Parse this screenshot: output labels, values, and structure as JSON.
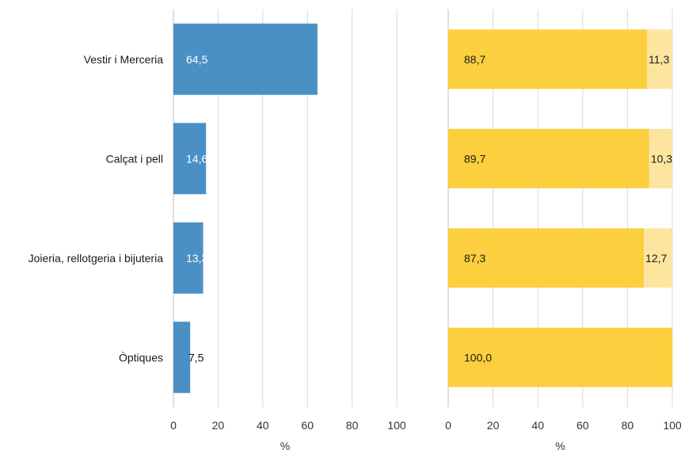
{
  "chart_data": [
    {
      "type": "bar",
      "orientation": "horizontal",
      "categories": [
        "Vestir i Merceria",
        "Calçat i pell",
        "Joieria, rellotgeria i bijuteria",
        "Òptiques"
      ],
      "values": [
        64.5,
        14.6,
        13.3,
        7.5
      ],
      "value_labels": [
        "64,5",
        "14,6",
        "13,3",
        "7,5"
      ],
      "xlabel": "%",
      "xlim": [
        0,
        100
      ],
      "xticks": [
        "0",
        "20",
        "40",
        "60",
        "80",
        "100"
      ],
      "grid": "vertical",
      "color": "#4a90c4",
      "label_color": "#ffffff"
    },
    {
      "type": "bar",
      "orientation": "horizontal",
      "stacked": true,
      "categories": [
        "Vestir i Merceria",
        "Calçat i pell",
        "Joieria, rellotgeria i bijuteria",
        "Òptiques"
      ],
      "series": [
        {
          "values": [
            88.7,
            89.7,
            87.3,
            100.0
          ],
          "labels": [
            "88,7",
            "89,7",
            "87,3",
            "100,0"
          ],
          "color": "#fccf3e"
        },
        {
          "values": [
            11.3,
            10.3,
            12.7,
            0.0
          ],
          "labels": [
            "11,3",
            "10,3",
            "12,7",
            ""
          ],
          "color": "#fde5a0"
        }
      ],
      "xlabel": "%",
      "xlim": [
        0,
        100
      ],
      "xticks": [
        "0",
        "20",
        "40",
        "60",
        "80",
        "100"
      ],
      "grid": "vertical",
      "label_color": "#1a1a1a"
    }
  ]
}
